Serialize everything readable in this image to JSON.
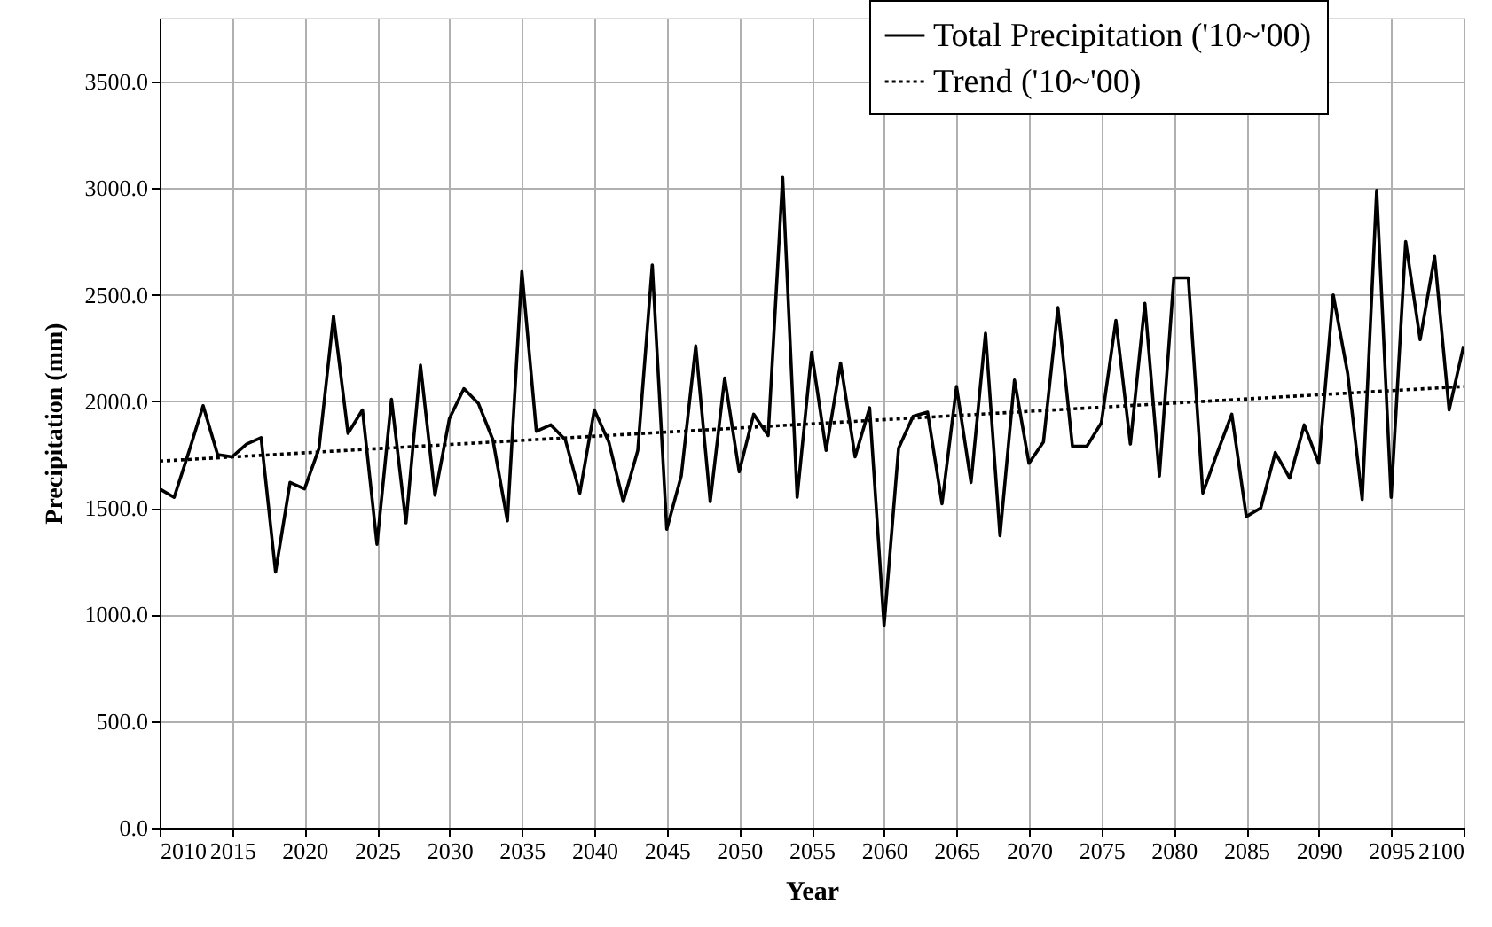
{
  "chart_data": {
    "type": "line",
    "xlabel": "Year",
    "ylabel": "Precipitation (mm)",
    "xlim": [
      2010,
      2100
    ],
    "xticks": [
      2010,
      2015,
      2020,
      2025,
      2030,
      2035,
      2040,
      2045,
      2050,
      2055,
      2060,
      2065,
      2070,
      2075,
      2080,
      2085,
      2090,
      2095,
      2100
    ],
    "ylim": [
      0,
      3800
    ],
    "yticks": [
      {
        "value": 0,
        "label": "0.0"
      },
      {
        "value": 500,
        "label": "500.0"
      },
      {
        "value": 1000,
        "label": "1000.0"
      },
      {
        "value": 1500,
        "label": "1500.0"
      },
      {
        "value": 2000,
        "label": "2000.0"
      },
      {
        "value": 2500,
        "label": "2500.0"
      },
      {
        "value": 3000,
        "label": "3000.0"
      },
      {
        "value": 3500,
        "label": "3500.0"
      }
    ],
    "grid": true,
    "legend": "top right",
    "marker": "none",
    "series": [
      {
        "name": "Total Precipitation ('10~'00)",
        "color": "#000000",
        "line_style": "solid",
        "x": [
          2010,
          2011,
          2012,
          2013,
          2014,
          2015,
          2016,
          2017,
          2018,
          2019,
          2020,
          2021,
          2022,
          2023,
          2024,
          2025,
          2026,
          2027,
          2028,
          2029,
          2030,
          2031,
          2032,
          2033,
          2034,
          2035,
          2036,
          2037,
          2038,
          2039,
          2040,
          2041,
          2042,
          2043,
          2044,
          2045,
          2046,
          2047,
          2048,
          2049,
          2050,
          2051,
          2052,
          2053,
          2054,
          2055,
          2056,
          2057,
          2058,
          2059,
          2060,
          2061,
          2062,
          2063,
          2064,
          2065,
          2066,
          2067,
          2068,
          2069,
          2070,
          2071,
          2072,
          2073,
          2074,
          2075,
          2076,
          2077,
          2078,
          2079,
          2080,
          2081,
          2082,
          2083,
          2084,
          2085,
          2086,
          2087,
          2088,
          2089,
          2090,
          2091,
          2092,
          2093,
          2094,
          2095,
          2096,
          2097,
          2098,
          2099,
          2100
        ],
        "values": [
          1590,
          1550,
          1760,
          1980,
          1750,
          1740,
          1800,
          1830,
          1200,
          1620,
          1590,
          1780,
          2400,
          1850,
          1960,
          1330,
          2010,
          1430,
          2170,
          1560,
          1920,
          2060,
          1990,
          1820,
          1440,
          2610,
          1860,
          1890,
          1820,
          1570,
          1960,
          1810,
          1530,
          1770,
          2640,
          1400,
          1650,
          2260,
          1530,
          2110,
          1670,
          1940,
          1840,
          3050,
          1550,
          2230,
          1770,
          2180,
          1740,
          1970,
          950,
          1780,
          1930,
          1950,
          1520,
          2070,
          1620,
          2320,
          1370,
          2100,
          1710,
          1810,
          2440,
          1790,
          1790,
          1900,
          2380,
          1800,
          2460,
          1650,
          2580,
          2580,
          1570,
          1760,
          1940,
          1460,
          1500,
          1760,
          1640,
          1890,
          1710,
          2500,
          2130,
          1540,
          2990,
          1550,
          2750,
          2290,
          2680,
          1960,
          2260
        ]
      },
      {
        "name": "Trend ('10~'00)",
        "color": "#000000",
        "line_style": "dotted",
        "x": [
          2010,
          2100
        ],
        "values": [
          1720,
          2070
        ]
      }
    ]
  }
}
